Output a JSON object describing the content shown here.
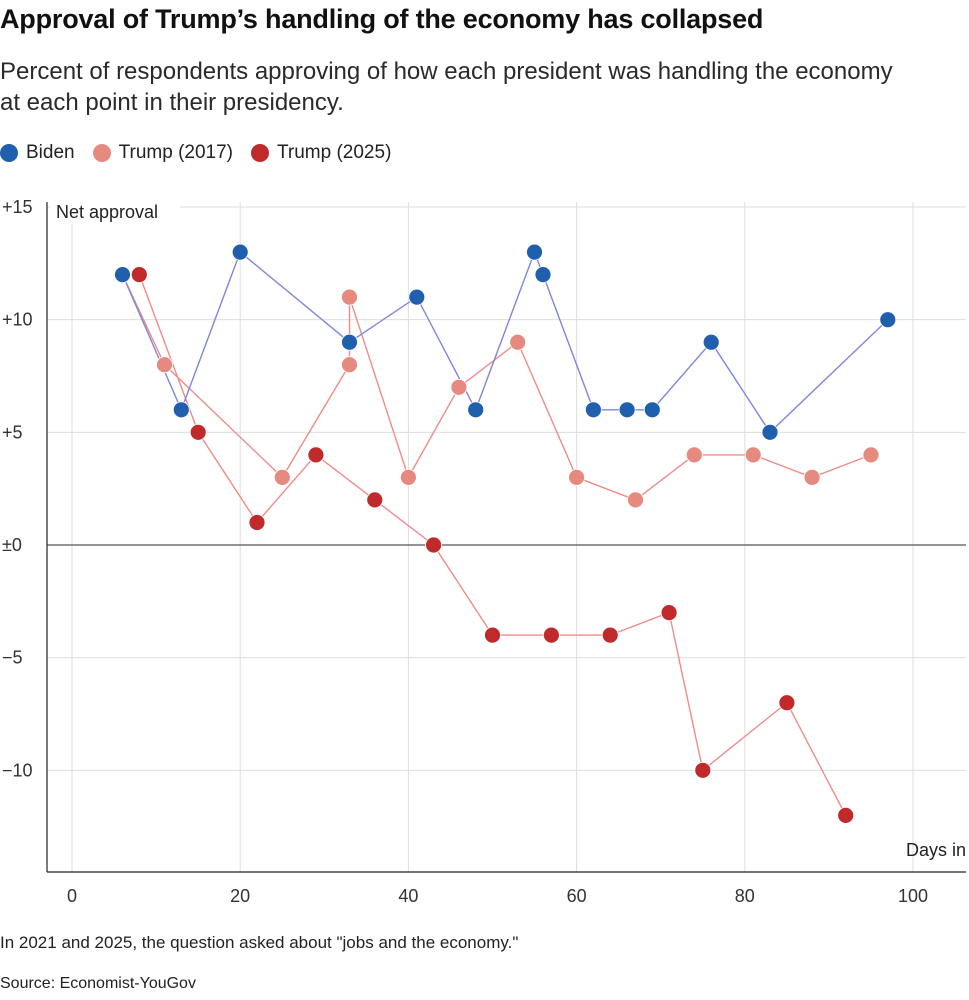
{
  "title": "Approval of Trump’s handling of the economy has collapsed",
  "subtitle": "Percent of respondents approving of how each president was handling the economy at each point in their presidency.",
  "note": "In 2021 and 2025, the question asked about \"jobs and the economy.\"",
  "source": "Source: Economist-YouGov",
  "chart_data": {
    "type": "line",
    "ylabel": "Net approval",
    "xlabel": "Days in",
    "xlim": [
      -3,
      107
    ],
    "ylim": [
      -14.5,
      15
    ],
    "xticks": [
      0,
      20,
      40,
      60,
      80,
      100
    ],
    "xtick_labels": [
      "0",
      "20",
      "40",
      "60",
      "80",
      "100"
    ],
    "yticks": [
      15,
      10,
      5,
      0,
      -5,
      -10
    ],
    "ytick_labels": [
      "+15",
      "+10",
      "+5",
      "±0",
      "−5",
      "−10"
    ],
    "grid": true,
    "legend_position": "top-left",
    "series": [
      {
        "name": "Biden",
        "color": "#1f5fad",
        "line_color": "#7f86dd",
        "x": [
          6,
          13,
          20,
          33,
          41,
          48,
          55,
          56,
          62,
          66,
          69,
          76,
          83,
          97
        ],
        "y": [
          12,
          6,
          13,
          9,
          11,
          6,
          13,
          12,
          6,
          6,
          6,
          9,
          5,
          10
        ]
      },
      {
        "name": "Trump (2017)",
        "color": "#e68a80",
        "line_color": "#ef8c88",
        "x": [
          6,
          11,
          25,
          33,
          33,
          40,
          46,
          53,
          60,
          67,
          74,
          81,
          88,
          95
        ],
        "y": [
          12,
          8,
          3,
          8,
          11,
          3,
          7,
          9,
          3,
          2,
          4,
          4,
          3,
          4
        ]
      },
      {
        "name": "Trump (2025)",
        "color": "#c12a2a",
        "line_color": "#ef8c88",
        "x": [
          8,
          15,
          22,
          29,
          36,
          43,
          50,
          57,
          64,
          71,
          75,
          85,
          92
        ],
        "y": [
          12,
          5,
          1,
          4,
          2,
          0,
          -4,
          -4,
          -4,
          -3,
          -10,
          -7,
          -12
        ]
      }
    ]
  }
}
